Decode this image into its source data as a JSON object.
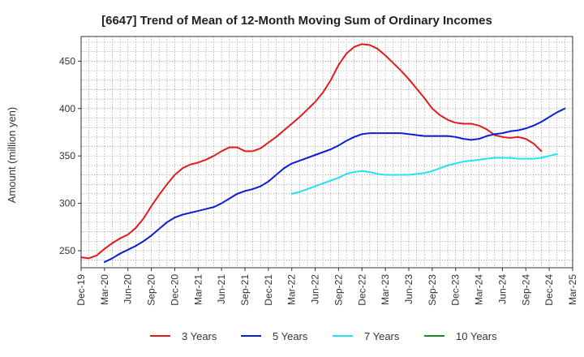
{
  "chart_data": {
    "type": "line",
    "title": "[6647]  Trend of Mean of 12-Month Moving Sum of Ordinary Incomes",
    "xlabel": "",
    "ylabel": "Amount (million yen)",
    "ylim": [
      232,
      476
    ],
    "yticks": [
      250,
      300,
      350,
      400,
      450
    ],
    "x_tick_labels": [
      "Dec-19",
      "Mar-20",
      "Jun-20",
      "Sep-20",
      "Dec-20",
      "Mar-21",
      "Jun-21",
      "Sep-21",
      "Dec-21",
      "Mar-22",
      "Jun-22",
      "Sep-22",
      "Dec-22",
      "Mar-23",
      "Jun-23",
      "Sep-23",
      "Dec-23",
      "Mar-24",
      "Jun-24",
      "Sep-24",
      "Dec-24",
      "Mar-25"
    ],
    "x_start": "Dec-19",
    "x_months_total": 63,
    "grid": true,
    "legend_position": "bottom",
    "series": [
      {
        "name": "3 Years",
        "color": "#e41a1c",
        "start_month_index": 0,
        "values": [
          243,
          242,
          245,
          252,
          258,
          263,
          267,
          274,
          284,
          297,
          309,
          320,
          330,
          337,
          341,
          343,
          346,
          350,
          355,
          359,
          359,
          355,
          355,
          358,
          364,
          370,
          377,
          384,
          391,
          399,
          407,
          417,
          430,
          446,
          458,
          465,
          468,
          467,
          463,
          456,
          448,
          440,
          431,
          421,
          411,
          400,
          393,
          388,
          385,
          384,
          384,
          382,
          378,
          372,
          370,
          369,
          370,
          368,
          363,
          355
        ]
      },
      {
        "name": "5 Years",
        "color": "#0a1ed6",
        "start_month_index": 3,
        "values": [
          238,
          242,
          247,
          251,
          255,
          260,
          266,
          273,
          280,
          285,
          288,
          290,
          292,
          294,
          296,
          300,
          305,
          310,
          313,
          315,
          318,
          323,
          330,
          337,
          342,
          345,
          348,
          351,
          354,
          357,
          361,
          366,
          370,
          373,
          374,
          374,
          374,
          374,
          374,
          373,
          372,
          371,
          371,
          371,
          371,
          370,
          368,
          367,
          368,
          371,
          373,
          374,
          376,
          377,
          379,
          382,
          386,
          391,
          396,
          400
        ]
      },
      {
        "name": "7 Years",
        "color": "#22e4f0",
        "start_month_index": 27,
        "values": [
          310,
          312,
          315,
          318,
          321,
          324,
          327,
          331,
          333,
          334,
          333,
          331,
          330,
          330,
          330,
          330,
          331,
          332,
          334,
          337,
          340,
          342,
          344,
          345,
          346,
          347,
          348,
          348,
          348,
          347,
          347,
          347,
          348,
          350,
          352
        ]
      },
      {
        "name": "10 Years",
        "color": "#1a8a1a",
        "start_month_index": 0,
        "values": []
      }
    ]
  }
}
